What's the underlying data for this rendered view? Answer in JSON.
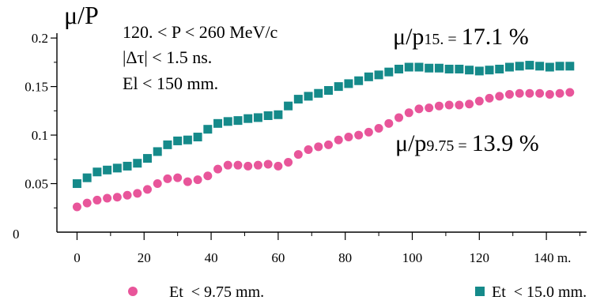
{
  "chart_data": {
    "type": "scatter",
    "title": "",
    "xlabel": "",
    "ylabel": "μ/P",
    "xlim": [
      -6,
      152
    ],
    "ylim": [
      0,
      0.205
    ],
    "x_ticks": [
      0,
      20,
      40,
      60,
      80,
      100,
      120,
      140
    ],
    "x_tick_labels": [
      "0",
      "20",
      "40",
      "60",
      "80",
      "100",
      "120",
      "140 m."
    ],
    "y_ticks": [
      0.05,
      0.1,
      0.15,
      0.2
    ],
    "y_tick_labels": [
      "0.05",
      "0.1",
      "0.15",
      "0.2"
    ],
    "y_origin_label": "0",
    "grid": false,
    "legend_position": "bottom",
    "annotation_cuts": [
      "120. < P < 260 MeV/c",
      "|Δτ| < 1.5 ns.",
      "El < 150 mm."
    ],
    "series": [
      {
        "name": "Et  < 15.0 mm.",
        "marker": "square",
        "color": "#158a8a",
        "annotation_prefix": "μ/p",
        "annotation_sub": "15. =",
        "annotation_value": "17.1 %",
        "x": [
          0,
          3,
          6,
          9,
          12,
          15,
          18,
          21,
          24,
          27,
          30,
          33,
          36,
          39,
          42,
          45,
          48,
          51,
          54,
          57,
          60,
          63,
          66,
          69,
          72,
          75,
          78,
          81,
          84,
          87,
          90,
          93,
          96,
          99,
          102,
          105,
          108,
          111,
          114,
          117,
          120,
          123,
          126,
          129,
          132,
          135,
          138,
          141,
          144,
          147
        ],
        "y": [
          0.05,
          0.056,
          0.062,
          0.064,
          0.066,
          0.068,
          0.071,
          0.076,
          0.083,
          0.09,
          0.094,
          0.095,
          0.098,
          0.106,
          0.112,
          0.114,
          0.115,
          0.117,
          0.118,
          0.12,
          0.121,
          0.13,
          0.137,
          0.14,
          0.143,
          0.146,
          0.15,
          0.153,
          0.156,
          0.16,
          0.162,
          0.165,
          0.168,
          0.17,
          0.17,
          0.169,
          0.169,
          0.168,
          0.168,
          0.167,
          0.166,
          0.167,
          0.168,
          0.17,
          0.171,
          0.172,
          0.171,
          0.17,
          0.171,
          0.171
        ]
      },
      {
        "name": "Et  < 9.75 mm.",
        "marker": "circle",
        "color": "#e8559a",
        "annotation_prefix": "μ/p",
        "annotation_sub": "9.75 =",
        "annotation_value": "13.9 %",
        "x": [
          0,
          3,
          6,
          9,
          12,
          15,
          18,
          21,
          24,
          27,
          30,
          33,
          36,
          39,
          42,
          45,
          48,
          51,
          54,
          57,
          60,
          63,
          66,
          69,
          72,
          75,
          78,
          81,
          84,
          87,
          90,
          93,
          96,
          99,
          102,
          105,
          108,
          111,
          114,
          117,
          120,
          123,
          126,
          129,
          132,
          135,
          138,
          141,
          144,
          147
        ],
        "y": [
          0.026,
          0.03,
          0.033,
          0.035,
          0.036,
          0.038,
          0.04,
          0.044,
          0.05,
          0.055,
          0.056,
          0.052,
          0.054,
          0.058,
          0.065,
          0.069,
          0.069,
          0.068,
          0.069,
          0.07,
          0.068,
          0.072,
          0.08,
          0.085,
          0.088,
          0.09,
          0.095,
          0.098,
          0.1,
          0.103,
          0.107,
          0.112,
          0.118,
          0.123,
          0.127,
          0.128,
          0.13,
          0.131,
          0.131,
          0.132,
          0.135,
          0.138,
          0.14,
          0.142,
          0.143,
          0.143,
          0.143,
          0.142,
          0.143,
          0.144
        ]
      }
    ]
  }
}
